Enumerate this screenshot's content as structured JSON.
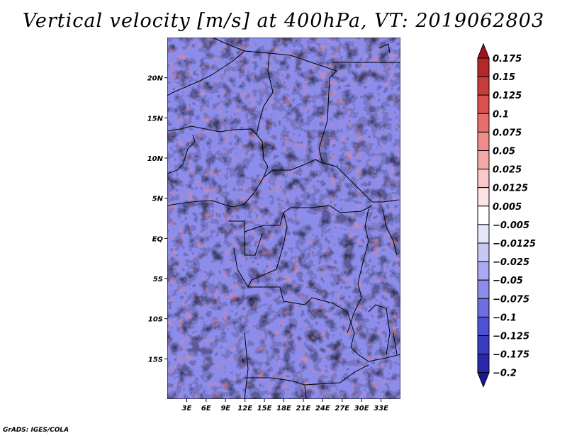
{
  "chart_data": {
    "type": "heatmap",
    "title": "Vertical velocity [m/s] at 400hPa, VT: 2019062803",
    "variable": "Vertical velocity",
    "units": "m/s",
    "level": "400hPa",
    "valid_time": "2019062803",
    "lon_range": [
      0,
      36
    ],
    "lat_range": [
      -20,
      25
    ],
    "x_ticks": [
      {
        "value": 3,
        "label": "3E"
      },
      {
        "value": 6,
        "label": "6E"
      },
      {
        "value": 9,
        "label": "9E"
      },
      {
        "value": 12,
        "label": "12E"
      },
      {
        "value": 15,
        "label": "15E"
      },
      {
        "value": 18,
        "label": "18E"
      },
      {
        "value": 21,
        "label": "21E"
      },
      {
        "value": 24,
        "label": "24E"
      },
      {
        "value": 27,
        "label": "27E"
      },
      {
        "value": 30,
        "label": "30E"
      },
      {
        "value": 33,
        "label": "33E"
      }
    ],
    "y_ticks": [
      {
        "value": 20,
        "label": "20N"
      },
      {
        "value": 15,
        "label": "15N"
      },
      {
        "value": 10,
        "label": "10N"
      },
      {
        "value": 5,
        "label": "5N"
      },
      {
        "value": 0,
        "label": "EQ"
      },
      {
        "value": -5,
        "label": "5S"
      },
      {
        "value": -10,
        "label": "10S"
      },
      {
        "value": -15,
        "label": "15S"
      }
    ],
    "colorbar": {
      "labels": [
        "0.175",
        "0.15",
        "0.125",
        "0.1",
        "0.075",
        "0.05",
        "0.025",
        "0.0125",
        "0.005",
        "−0.005",
        "−0.0125",
        "−0.025",
        "−0.05",
        "−0.075",
        "−0.1",
        "−0.125",
        "−0.175",
        "−0.2"
      ],
      "colors": [
        "#a0141e",
        "#b42828",
        "#c83c3c",
        "#dc5050",
        "#e66e6e",
        "#f08c8c",
        "#f5aaaa",
        "#fac8c8",
        "#fde4e4",
        "#ffffff",
        "#e6e6fa",
        "#c8c8f5",
        "#aaaaf0",
        "#8c8ceb",
        "#6e6ee1",
        "#5050d2",
        "#3c3cbe",
        "#2828aa",
        "#1a1a96"
      ]
    }
  },
  "footer": "GrADS: IGES/COLA"
}
